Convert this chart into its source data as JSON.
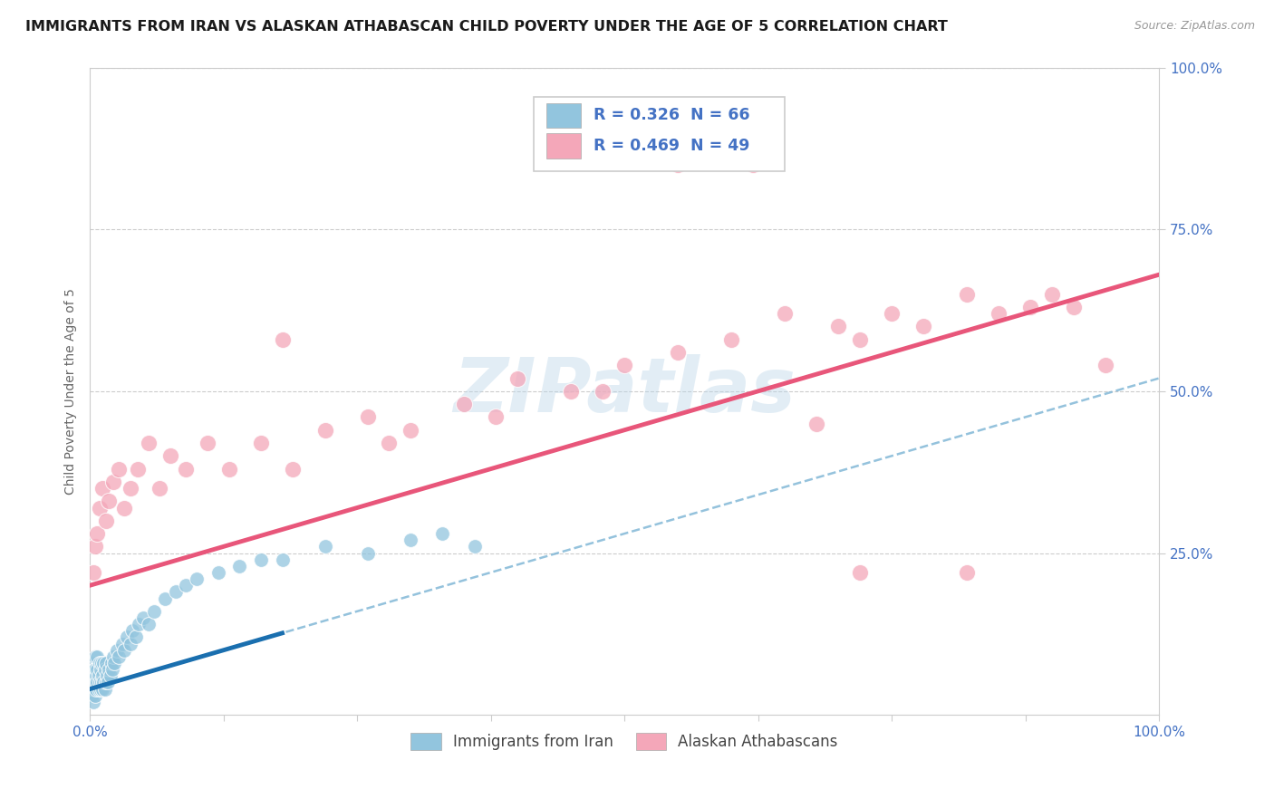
{
  "title": "IMMIGRANTS FROM IRAN VS ALASKAN ATHABASCAN CHILD POVERTY UNDER THE AGE OF 5 CORRELATION CHART",
  "source": "Source: ZipAtlas.com",
  "ylabel": "Child Poverty Under the Age of 5",
  "xlim": [
    0,
    1
  ],
  "ylim": [
    0,
    1
  ],
  "x_tick_labels": [
    "0.0%",
    "100.0%"
  ],
  "y_tick_labels": [
    "25.0%",
    "50.0%",
    "75.0%",
    "100.0%"
  ],
  "y_tick_positions": [
    0.25,
    0.5,
    0.75,
    1.0
  ],
  "blue_R": 0.326,
  "blue_N": 66,
  "pink_R": 0.469,
  "pink_N": 49,
  "blue_color": "#92c5de",
  "pink_color": "#f4a7b9",
  "blue_line_color": "#1a6faf",
  "pink_line_color": "#e8567a",
  "watermark": "ZIPatlas",
  "legend_blue_label": "Immigrants from Iran",
  "legend_pink_label": "Alaskan Athabascans",
  "title_fontsize": 11.5,
  "axis_label_fontsize": 10,
  "tick_fontsize": 11,
  "blue_scatter_x": [
    0.001,
    0.002,
    0.002,
    0.003,
    0.003,
    0.003,
    0.004,
    0.004,
    0.005,
    0.005,
    0.005,
    0.005,
    0.006,
    0.006,
    0.007,
    0.007,
    0.007,
    0.008,
    0.008,
    0.009,
    0.009,
    0.01,
    0.01,
    0.011,
    0.011,
    0.012,
    0.012,
    0.013,
    0.013,
    0.014,
    0.014,
    0.015,
    0.015,
    0.016,
    0.017,
    0.018,
    0.019,
    0.02,
    0.021,
    0.022,
    0.023,
    0.025,
    0.027,
    0.03,
    0.032,
    0.035,
    0.038,
    0.04,
    0.043,
    0.046,
    0.05,
    0.055,
    0.06,
    0.07,
    0.08,
    0.09,
    0.1,
    0.12,
    0.14,
    0.16,
    0.18,
    0.22,
    0.26,
    0.3,
    0.33,
    0.36
  ],
  "blue_scatter_y": [
    0.04,
    0.03,
    0.06,
    0.05,
    0.08,
    0.02,
    0.04,
    0.07,
    0.03,
    0.05,
    0.07,
    0.09,
    0.04,
    0.06,
    0.05,
    0.07,
    0.09,
    0.04,
    0.06,
    0.05,
    0.08,
    0.04,
    0.07,
    0.05,
    0.08,
    0.04,
    0.06,
    0.05,
    0.08,
    0.04,
    0.07,
    0.05,
    0.08,
    0.06,
    0.05,
    0.07,
    0.06,
    0.08,
    0.07,
    0.09,
    0.08,
    0.1,
    0.09,
    0.11,
    0.1,
    0.12,
    0.11,
    0.13,
    0.12,
    0.14,
    0.15,
    0.14,
    0.16,
    0.18,
    0.19,
    0.2,
    0.21,
    0.22,
    0.23,
    0.24,
    0.24,
    0.26,
    0.25,
    0.27,
    0.28,
    0.26
  ],
  "pink_scatter_x": [
    0.003,
    0.005,
    0.007,
    0.009,
    0.012,
    0.015,
    0.018,
    0.022,
    0.027,
    0.032,
    0.038,
    0.045,
    0.055,
    0.065,
    0.075,
    0.09,
    0.11,
    0.13,
    0.16,
    0.19,
    0.22,
    0.26,
    0.3,
    0.35,
    0.4,
    0.45,
    0.5,
    0.55,
    0.6,
    0.65,
    0.7,
    0.72,
    0.75,
    0.78,
    0.82,
    0.85,
    0.88,
    0.9,
    0.92,
    0.95,
    0.55,
    0.62,
    0.18,
    0.28,
    0.38,
    0.48,
    0.68,
    0.72,
    0.82
  ],
  "pink_scatter_y": [
    0.22,
    0.26,
    0.28,
    0.32,
    0.35,
    0.3,
    0.33,
    0.36,
    0.38,
    0.32,
    0.35,
    0.38,
    0.42,
    0.35,
    0.4,
    0.38,
    0.42,
    0.38,
    0.42,
    0.38,
    0.44,
    0.46,
    0.44,
    0.48,
    0.52,
    0.5,
    0.54,
    0.56,
    0.58,
    0.62,
    0.6,
    0.58,
    0.62,
    0.6,
    0.65,
    0.62,
    0.63,
    0.65,
    0.63,
    0.54,
    0.85,
    0.85,
    0.58,
    0.42,
    0.46,
    0.5,
    0.45,
    0.22,
    0.22
  ]
}
